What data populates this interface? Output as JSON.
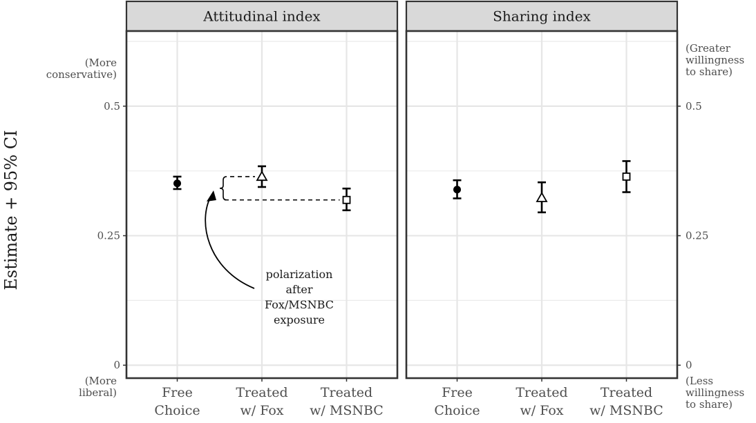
{
  "y_axis_title": "Estimate + 95% CI",
  "y_ticks": [
    {
      "value": 0,
      "label": "0"
    },
    {
      "value": 0.25,
      "label": "0.25"
    },
    {
      "value": 0.5,
      "label": "0.5"
    }
  ],
  "left_axis_notes": {
    "top": [
      "(More",
      "conservative)"
    ],
    "bottom": [
      "(More",
      "liberal)"
    ]
  },
  "right_axis_notes": {
    "top": [
      "(Greater",
      "willingness",
      "to share)"
    ],
    "bottom": [
      "(Less",
      "willingness",
      "to share)"
    ]
  },
  "annotation": [
    "polarization",
    "after",
    "Fox/MSNBC",
    "exposure"
  ],
  "chart_data": [
    {
      "type": "scatter",
      "panel": "Attitudinal index",
      "categories": [
        "Free Choice",
        "Treated w/ Fox",
        "Treated w/ MSNBC"
      ],
      "category_lines": [
        [
          "Free",
          "Choice"
        ],
        [
          "Treated",
          "w/ Fox"
        ],
        [
          "Treated",
          "w/ MSNBC"
        ]
      ],
      "markers": [
        "filled-circle",
        "open-triangle",
        "open-square"
      ],
      "estimate": [
        0.351,
        0.364,
        0.319
      ],
      "ci_low": [
        0.34,
        0.344,
        0.299
      ],
      "ci_high": [
        0.364,
        0.384,
        0.341
      ],
      "ylim": [
        -0.025,
        0.645
      ],
      "grid": true
    },
    {
      "type": "scatter",
      "panel": "Sharing index",
      "categories": [
        "Free Choice",
        "Treated w/ Fox",
        "Treated w/ MSNBC"
      ],
      "category_lines": [
        [
          "Free",
          "Choice"
        ],
        [
          "Treated",
          "w/ Fox"
        ],
        [
          "Treated",
          "w/ MSNBC"
        ]
      ],
      "markers": [
        "filled-circle",
        "open-triangle",
        "open-square"
      ],
      "estimate": [
        0.339,
        0.323,
        0.364
      ],
      "ci_low": [
        0.322,
        0.295,
        0.334
      ],
      "ci_high": [
        0.357,
        0.353,
        0.394
      ],
      "ylim": [
        -0.025,
        0.645
      ],
      "grid": true
    }
  ]
}
